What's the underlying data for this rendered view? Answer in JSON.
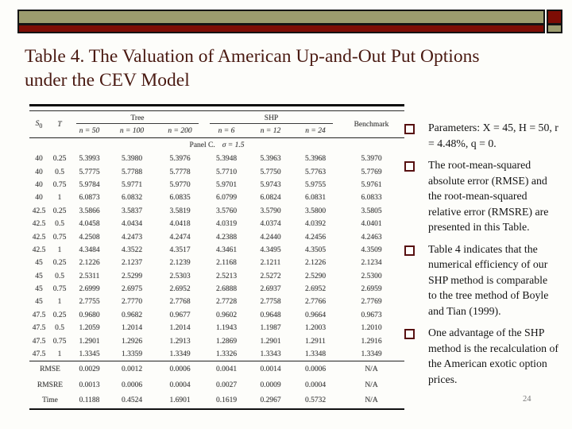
{
  "slide": {
    "title": "Table 4. The Valuation of American Up-and-Out Put Options under the CEV Model",
    "page_number": "24"
  },
  "colors": {
    "bar_olive": "#9c9c6e",
    "bar_maroon": "#7d0d05",
    "title_text": "#4a1a12"
  },
  "table": {
    "header": {
      "s0_base": "S",
      "s0_sub": "0",
      "t": "T",
      "tree_group": "Tree",
      "shp_group": "SHP",
      "benchmark": "Benchmark",
      "tree_subcols": [
        "n = 50",
        "n = 100",
        "n = 200"
      ],
      "shp_subcols": [
        "n = 6",
        "n = 12",
        "n = 24"
      ]
    },
    "panel_label": "Panel C.",
    "panel_value": "σ = 1.5",
    "rows": [
      [
        "40",
        "0.25",
        "5.3993",
        "5.3980",
        "5.3976",
        "5.3948",
        "5.3963",
        "5.3968",
        "5.3970"
      ],
      [
        "40",
        "0.5",
        "5.7775",
        "5.7788",
        "5.7778",
        "5.7710",
        "5.7750",
        "5.7763",
        "5.7769"
      ],
      [
        "40",
        "0.75",
        "5.9784",
        "5.9771",
        "5.9770",
        "5.9701",
        "5.9743",
        "5.9755",
        "5.9761"
      ],
      [
        "40",
        "1",
        "6.0873",
        "6.0832",
        "6.0835",
        "6.0799",
        "6.0824",
        "6.0831",
        "6.0833"
      ],
      [
        "42.5",
        "0.25",
        "3.5866",
        "3.5837",
        "3.5819",
        "3.5760",
        "3.5790",
        "3.5800",
        "3.5805"
      ],
      [
        "42.5",
        "0.5",
        "4.0458",
        "4.0434",
        "4.0418",
        "4.0319",
        "4.0374",
        "4.0392",
        "4.0401"
      ],
      [
        "42.5",
        "0.75",
        "4.2508",
        "4.2473",
        "4.2474",
        "4.2388",
        "4.2440",
        "4.2456",
        "4.2463"
      ],
      [
        "42.5",
        "1",
        "4.3484",
        "4.3522",
        "4.3517",
        "4.3461",
        "4.3495",
        "4.3505",
        "4.3509"
      ],
      [
        "45",
        "0.25",
        "2.1226",
        "2.1237",
        "2.1239",
        "2.1168",
        "2.1211",
        "2.1226",
        "2.1234"
      ],
      [
        "45",
        "0.5",
        "2.5311",
        "2.5299",
        "2.5303",
        "2.5213",
        "2.5272",
        "2.5290",
        "2.5300"
      ],
      [
        "45",
        "0.75",
        "2.6999",
        "2.6975",
        "2.6952",
        "2.6888",
        "2.6937",
        "2.6952",
        "2.6959"
      ],
      [
        "45",
        "1",
        "2.7755",
        "2.7770",
        "2.7768",
        "2.7728",
        "2.7758",
        "2.7766",
        "2.7769"
      ],
      [
        "47.5",
        "0.25",
        "0.9680",
        "0.9682",
        "0.9677",
        "0.9602",
        "0.9648",
        "0.9664",
        "0.9673"
      ],
      [
        "47.5",
        "0.5",
        "1.2059",
        "1.2014",
        "1.2014",
        "1.1943",
        "1.1987",
        "1.2003",
        "1.2010"
      ],
      [
        "47.5",
        "0.75",
        "1.2901",
        "1.2926",
        "1.2913",
        "1.2869",
        "1.2901",
        "1.2911",
        "1.2916"
      ],
      [
        "47.5",
        "1",
        "1.3345",
        "1.3359",
        "1.3349",
        "1.3326",
        "1.3343",
        "1.3348",
        "1.3349"
      ]
    ],
    "summary_rows": [
      [
        "RMSE",
        "0.0029",
        "0.0012",
        "0.0006",
        "0.0041",
        "0.0014",
        "0.0006",
        "N/A"
      ],
      [
        "RMSRE",
        "0.0013",
        "0.0006",
        "0.0004",
        "0.0027",
        "0.0009",
        "0.0004",
        "N/A"
      ],
      [
        "Time",
        "0.1188",
        "0.4524",
        "1.6901",
        "0.1619",
        "0.2967",
        "0.5732",
        "N/A"
      ]
    ]
  },
  "bullets": [
    "Parameters: X = 45, H = 50, r = 4.48%, q = 0.",
    "The root-mean-squared absolute error (RMSE) and the root-mean-squared relative error (RMSRE) are presented in this Table.",
    "Table 4 indicates that the numerical efficiency of our SHP method is comparable to the tree method of Boyle and Tian (1999).",
    "One advantage of the SHP method is the recalculation of the American exotic option prices."
  ]
}
